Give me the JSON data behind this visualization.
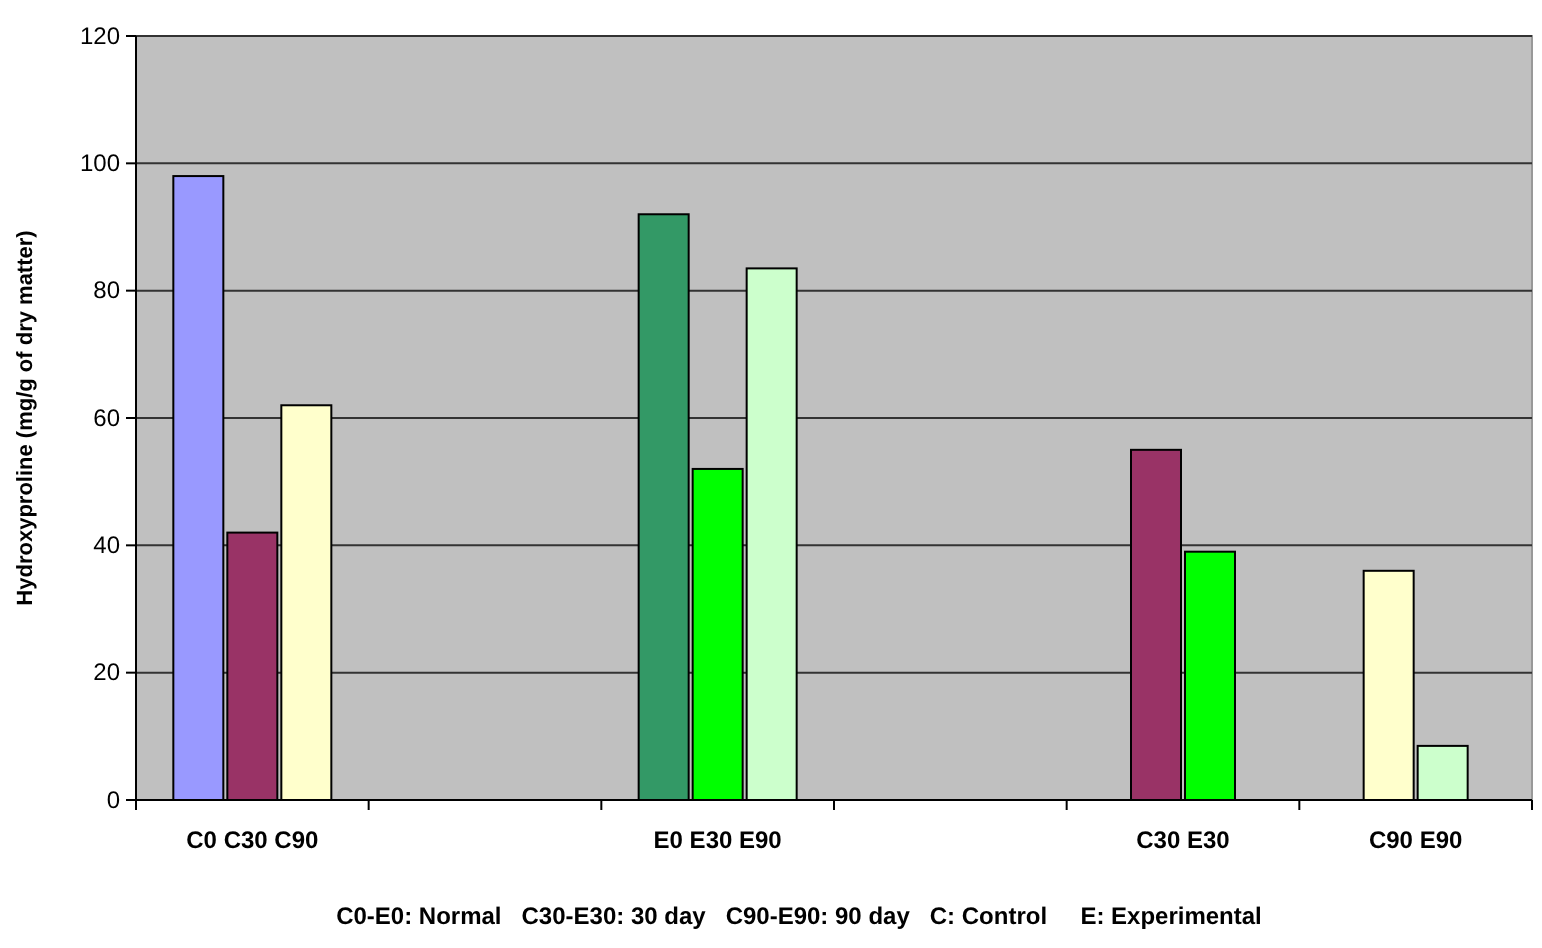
{
  "chart_data": {
    "type": "bar",
    "ylabel": "Hydroxyproline (mg/g of dry matter)",
    "categories": [
      "C0 C30 C90",
      null,
      "E0 E30 E90",
      null,
      "C30 E30",
      "C90 E90"
    ],
    "series": [
      {
        "color": "#9999ff",
        "values": [
          98,
          null,
          null,
          null,
          null,
          null
        ]
      },
      {
        "color": "#993366",
        "values": [
          42,
          null,
          null,
          null,
          55,
          null
        ]
      },
      {
        "color": "#ffffcc",
        "values": [
          62,
          null,
          null,
          null,
          null,
          36
        ]
      },
      {
        "color": "#339966",
        "values": [
          null,
          null,
          92,
          null,
          null,
          null
        ]
      },
      {
        "color": "#00ff00",
        "values": [
          null,
          null,
          52,
          null,
          39,
          null
        ]
      },
      {
        "color": "#ccffcc",
        "values": [
          null,
          null,
          83.5,
          null,
          null,
          8.5
        ]
      }
    ],
    "ylim": [
      0,
      120
    ],
    "yticks": [
      0,
      20,
      40,
      60,
      80,
      100,
      120
    ],
    "grid": "y",
    "annotations": [
      "C0-E0: Normal   C30-E30: 30 day   C90-E90: 90 day   C: Control     E: Experimental"
    ]
  }
}
